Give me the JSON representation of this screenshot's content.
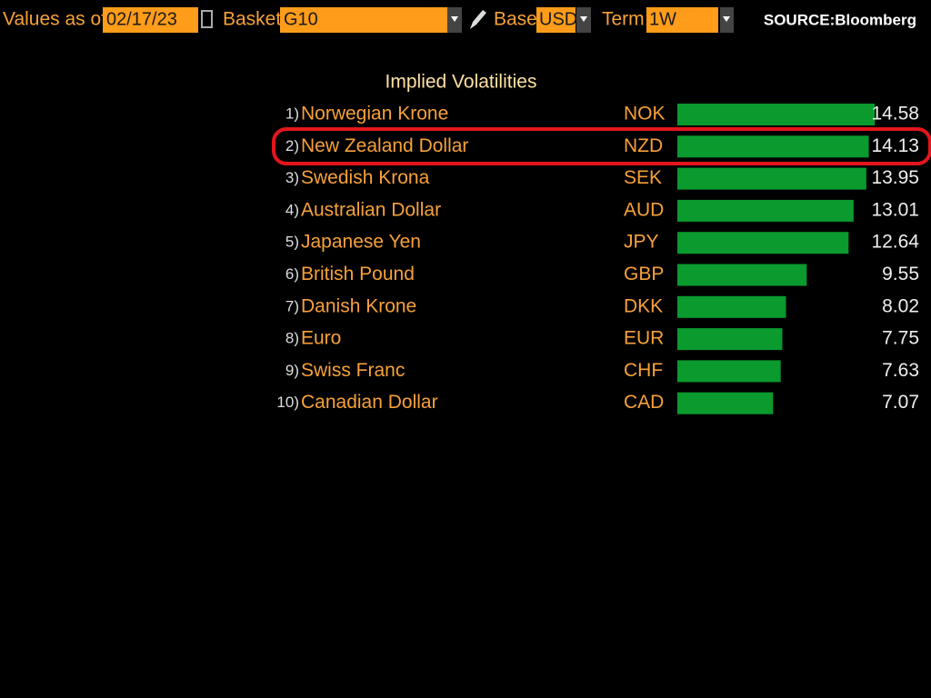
{
  "toolbar": {
    "values_label": "Values as of",
    "date": "02/17/23",
    "basket_label": "Basket",
    "basket": "G10",
    "base_label": "Base",
    "base": "USD",
    "term_label": "Term",
    "term": "1W"
  },
  "source": "SOURCE:Bloomberg",
  "chart_data": {
    "type": "bar",
    "title": "Implied Volatilities",
    "ranks": [
      "1)",
      "2)",
      "3)",
      "4)",
      "5)",
      "6)",
      "7)",
      "8)",
      "9)",
      "10)"
    ],
    "categories": [
      "Norwegian Krone",
      "New Zealand Dollar",
      "Swedish Krona",
      "Australian Dollar",
      "Japanese Yen",
      "British Pound",
      "Danish Krone",
      "Euro",
      "Swiss Franc",
      "Canadian Dollar"
    ],
    "codes": [
      "NOK",
      "NZD",
      "SEK",
      "AUD",
      "JPY",
      "GBP",
      "DKK",
      "EUR",
      "CHF",
      "CAD"
    ],
    "values": [
      14.58,
      14.13,
      13.95,
      13.01,
      12.64,
      9.55,
      8.02,
      7.75,
      7.63,
      7.07
    ],
    "color": "#0a9a2e"
  }
}
